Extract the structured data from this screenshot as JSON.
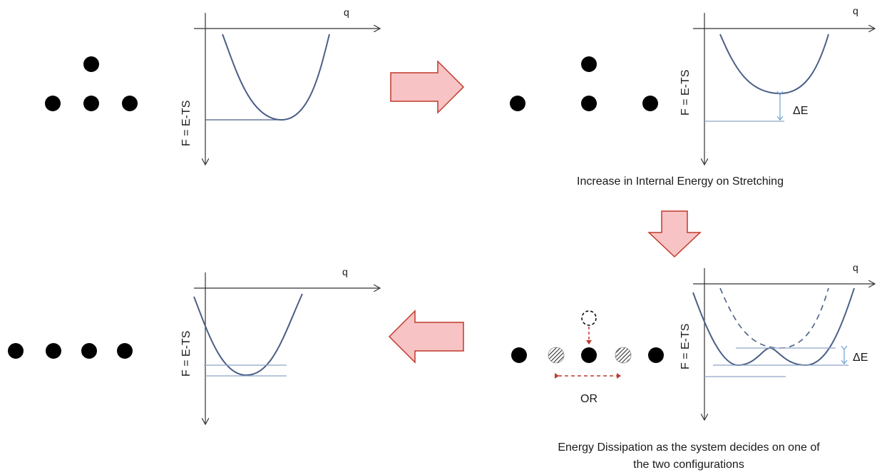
{
  "panels": {
    "top_left": {
      "y_axis_label": "F = E-TS",
      "x_axis_label": "q"
    },
    "top_right": {
      "y_axis_label": "F = E-TS",
      "x_axis_label": "q",
      "delta_label": "ΔE",
      "caption": "Increase in Internal Energy on Stretching"
    },
    "bottom_right": {
      "y_axis_label": "F = E-TS",
      "x_axis_label": "q",
      "delta_label": "ΔE",
      "or_label": "OR",
      "caption_line1": "Energy Dissipation as the system decides on one of",
      "caption_line2": "the two configurations"
    },
    "bottom_left": {
      "y_axis_label": "F = E-TS",
      "x_axis_label": "q"
    }
  },
  "colors": {
    "curve": "#4a5f86",
    "level_line": "#8fa3c8",
    "delta_arrow": "#6aa3d6",
    "arrow_fill": "#f7c3c4",
    "arrow_stroke": "#c0392b",
    "atom": "#000000",
    "dashed_red": "#c0392b"
  }
}
